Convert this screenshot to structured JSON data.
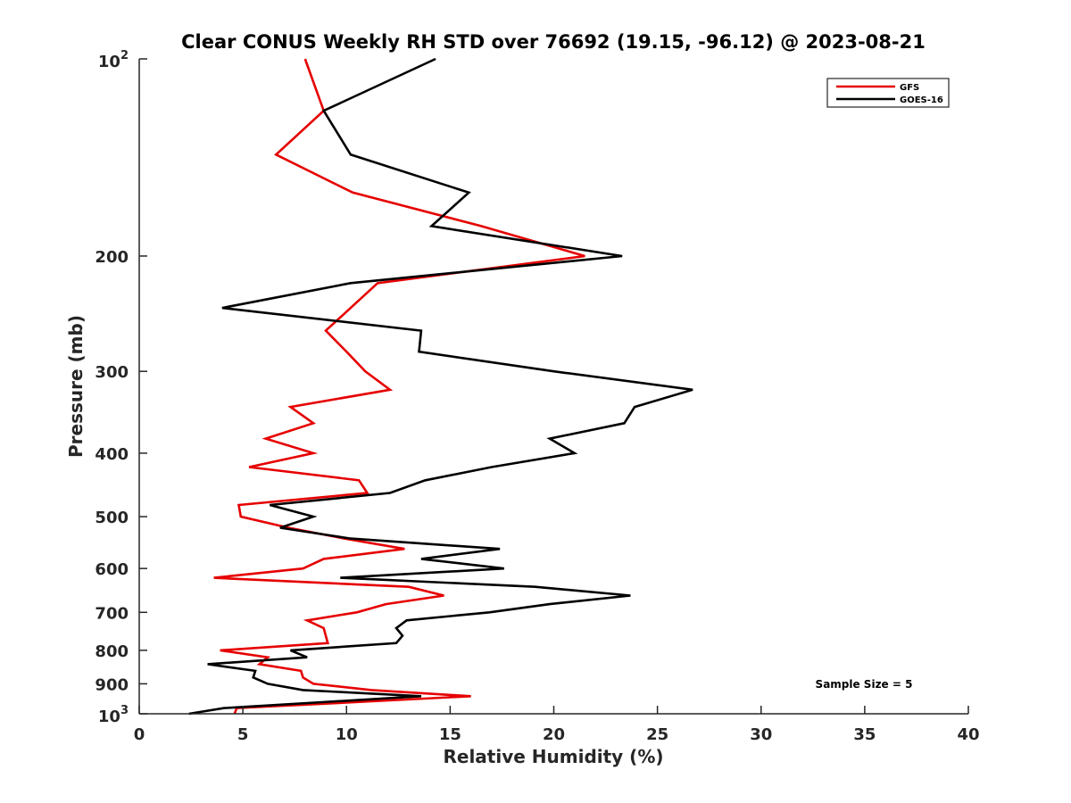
{
  "chart_data": {
    "type": "line",
    "title": "Clear CONUS Weekly RH STD over 76692 (19.15, -96.12) @ 2023-08-21",
    "xlabel": "Relative Humidity (%)",
    "ylabel": "Pressure (mb)",
    "xlim": [
      0,
      40
    ],
    "ylim": [
      100,
      1000
    ],
    "yscale": "log",
    "y_reversed": true,
    "grid": false,
    "x_ticks": [
      0,
      5,
      10,
      15,
      20,
      25,
      30,
      35,
      40
    ],
    "x_tick_labels": [
      "0",
      "5",
      "10",
      "15",
      "20",
      "25",
      "30",
      "35",
      "40"
    ],
    "y_ticks": [
      100,
      200,
      300,
      400,
      500,
      600,
      700,
      800,
      900,
      1000
    ],
    "y_tick_labels": [
      {
        "base": "10",
        "exp": "2"
      },
      {
        "base": "200"
      },
      {
        "base": "300"
      },
      {
        "base": "400"
      },
      {
        "base": "500"
      },
      {
        "base": "600"
      },
      {
        "base": "700"
      },
      {
        "base": "800"
      },
      {
        "base": "900"
      },
      {
        "base": "10",
        "exp": "3"
      }
    ],
    "legend": {
      "placement": "top-right",
      "entries": [
        "GFS",
        "GOES-16"
      ]
    },
    "annotations": [
      {
        "text": "Sample Size = 5",
        "placement": "bottom-right"
      }
    ],
    "pressure_levels": [
      100,
      120,
      140,
      160,
      180,
      200,
      220,
      240,
      260,
      280,
      300,
      320,
      340,
      360,
      380,
      400,
      420,
      440,
      460,
      480,
      500,
      520,
      540,
      560,
      580,
      600,
      620,
      640,
      660,
      680,
      700,
      720,
      740,
      760,
      780,
      800,
      820,
      840,
      860,
      880,
      900,
      920,
      940,
      960,
      980,
      1000
    ],
    "series": [
      {
        "name": "GFS",
        "color": "#e60000",
        "values": [
          8.0,
          8.9,
          6.6,
          10.3,
          16.5,
          21.5,
          11.5,
          10.2,
          9.0,
          10.0,
          10.9,
          12.1,
          7.3,
          8.4,
          6.1,
          8.4,
          5.3,
          10.6,
          11.0,
          4.8,
          4.9,
          7.2,
          9.9,
          12.8,
          8.9,
          7.9,
          3.6,
          13.0,
          14.7,
          11.9,
          10.5,
          8.1,
          8.9,
          9.0,
          9.1,
          3.9,
          6.2,
          5.8,
          7.8,
          7.9,
          8.4,
          11.2,
          16.0,
          10.4,
          4.7,
          4.6
        ]
      },
      {
        "name": "GOES-16",
        "color": "#000000",
        "values": [
          14.3,
          8.9,
          10.2,
          15.9,
          14.1,
          23.3,
          10.2,
          4.0,
          13.6,
          13.5,
          20.0,
          26.7,
          23.9,
          23.4,
          19.8,
          21.0,
          17.0,
          13.8,
          12.1,
          6.3,
          8.4,
          6.8,
          10.2,
          17.4,
          13.6,
          17.6,
          9.7,
          19.1,
          23.7,
          19.8,
          16.9,
          12.9,
          12.4,
          12.7,
          12.4,
          7.3,
          8.1,
          3.3,
          5.6,
          5.5,
          6.2,
          7.9,
          13.6,
          8.8,
          4.1,
          2.4
        ]
      }
    ]
  }
}
